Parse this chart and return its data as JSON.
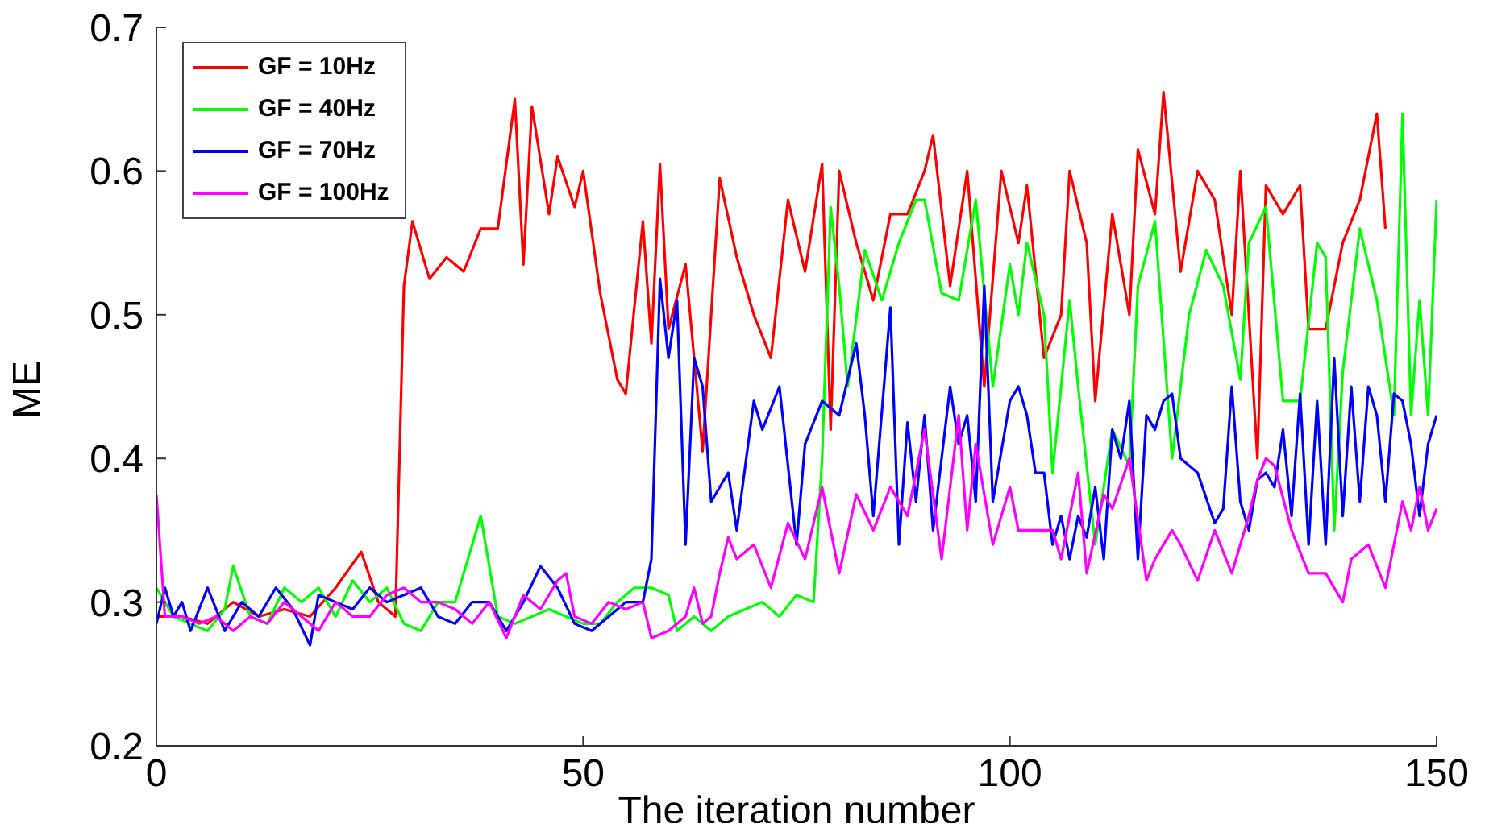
{
  "chart_data": {
    "type": "line",
    "xlabel": "The iteration number",
    "ylabel": "ME",
    "xlim": [
      0,
      150
    ],
    "xticks": [
      0,
      50,
      100,
      150
    ],
    "ylim": [
      0.2,
      0.7
    ],
    "yticks": [
      0.2,
      0.3,
      0.4,
      0.5,
      0.6,
      0.7
    ],
    "grid": false,
    "legend": "top left",
    "marker": "none",
    "line_style": "solid",
    "series": [
      {
        "name": "GF = 10Hz",
        "color": "#ff0000",
        "x": [
          0,
          3,
          6,
          9,
          12,
          15,
          18,
          21,
          24,
          26,
          28,
          29,
          30,
          32,
          34,
          36,
          38,
          40,
          42,
          43,
          44,
          46,
          47,
          49,
          50,
          52,
          54,
          55,
          57,
          58,
          59,
          60,
          62,
          64,
          66,
          68,
          70,
          72,
          74,
          76,
          78,
          79,
          80,
          82,
          84,
          86,
          88,
          90,
          91,
          93,
          95,
          97,
          99,
          101,
          102,
          104,
          106,
          107,
          109,
          110,
          112,
          114,
          115,
          117,
          118,
          120,
          122,
          124,
          126,
          127,
          129,
          130,
          132,
          134,
          135,
          137,
          139,
          141,
          143,
          144
        ],
        "values": [
          0.29,
          0.29,
          0.285,
          0.3,
          0.29,
          0.295,
          0.29,
          0.31,
          0.335,
          0.3,
          0.29,
          0.52,
          0.565,
          0.525,
          0.54,
          0.53,
          0.56,
          0.56,
          0.65,
          0.535,
          0.645,
          0.57,
          0.61,
          0.575,
          0.6,
          0.515,
          0.455,
          0.445,
          0.565,
          0.48,
          0.605,
          0.49,
          0.535,
          0.405,
          0.595,
          0.54,
          0.5,
          0.47,
          0.58,
          0.53,
          0.605,
          0.42,
          0.6,
          0.55,
          0.51,
          0.57,
          0.57,
          0.6,
          0.625,
          0.52,
          0.6,
          0.45,
          0.6,
          0.55,
          0.59,
          0.47,
          0.5,
          0.6,
          0.55,
          0.44,
          0.57,
          0.5,
          0.615,
          0.57,
          0.655,
          0.53,
          0.6,
          0.58,
          0.5,
          0.6,
          0.4,
          0.59,
          0.57,
          0.59,
          0.49,
          0.49,
          0.55,
          0.58,
          0.64,
          0.56
        ]
      },
      {
        "name": "GF = 40Hz",
        "color": "#00ff00",
        "x": [
          0,
          2,
          4,
          6,
          8,
          9,
          11,
          13,
          15,
          17,
          19,
          21,
          23,
          25,
          27,
          29,
          31,
          33,
          35,
          37,
          38,
          40,
          42,
          44,
          46,
          48,
          50,
          52,
          54,
          56,
          58,
          60,
          61,
          63,
          65,
          67,
          69,
          71,
          73,
          75,
          77,
          78,
          79,
          80,
          81,
          83,
          85,
          87,
          89,
          90,
          92,
          94,
          96,
          98,
          100,
          101,
          102,
          104,
          105,
          107,
          108,
          110,
          112,
          114,
          115,
          117,
          119,
          121,
          123,
          125,
          127,
          128,
          130,
          132,
          134,
          136,
          137,
          138,
          139,
          141,
          143,
          145,
          146,
          147,
          148,
          149,
          150
        ],
        "values": [
          0.31,
          0.29,
          0.285,
          0.28,
          0.295,
          0.325,
          0.29,
          0.285,
          0.31,
          0.3,
          0.31,
          0.29,
          0.315,
          0.3,
          0.31,
          0.285,
          0.28,
          0.3,
          0.3,
          0.34,
          0.36,
          0.29,
          0.285,
          0.29,
          0.295,
          0.29,
          0.285,
          0.285,
          0.3,
          0.31,
          0.31,
          0.305,
          0.28,
          0.29,
          0.28,
          0.29,
          0.295,
          0.3,
          0.29,
          0.305,
          0.3,
          0.4,
          0.575,
          0.52,
          0.45,
          0.545,
          0.51,
          0.55,
          0.58,
          0.58,
          0.515,
          0.51,
          0.58,
          0.45,
          0.535,
          0.5,
          0.55,
          0.5,
          0.39,
          0.51,
          0.45,
          0.34,
          0.42,
          0.395,
          0.52,
          0.565,
          0.4,
          0.5,
          0.545,
          0.52,
          0.455,
          0.55,
          0.575,
          0.44,
          0.44,
          0.55,
          0.54,
          0.35,
          0.46,
          0.56,
          0.51,
          0.43,
          0.64,
          0.43,
          0.51,
          0.43,
          0.58
        ]
      },
      {
        "name": "GF = 70Hz",
        "color": "#0000ff",
        "x": [
          0,
          1,
          2,
          3,
          4,
          6,
          8,
          10,
          12,
          14,
          16,
          18,
          19,
          21,
          23,
          25,
          27,
          29,
          31,
          33,
          35,
          37,
          39,
          41,
          43,
          45,
          47,
          49,
          51,
          53,
          55,
          57,
          58,
          59,
          60,
          61,
          62,
          63,
          64,
          65,
          67,
          68,
          70,
          71,
          73,
          75,
          76,
          78,
          80,
          82,
          83,
          84,
          86,
          87,
          88,
          89,
          90,
          91,
          93,
          94,
          95,
          96,
          97,
          98,
          100,
          101,
          102,
          103,
          104,
          105,
          106,
          107,
          108,
          109,
          110,
          111,
          112,
          113,
          114,
          115,
          116,
          117,
          118,
          119,
          120,
          122,
          124,
          125,
          126,
          127,
          128,
          129,
          130,
          131,
          132,
          133,
          134,
          135,
          136,
          137,
          138,
          139,
          140,
          141,
          142,
          143,
          144,
          145,
          146,
          147,
          148,
          149,
          150
        ],
        "values": [
          0.285,
          0.31,
          0.29,
          0.3,
          0.28,
          0.31,
          0.28,
          0.3,
          0.29,
          0.31,
          0.295,
          0.27,
          0.305,
          0.3,
          0.295,
          0.31,
          0.3,
          0.305,
          0.31,
          0.29,
          0.285,
          0.3,
          0.3,
          0.28,
          0.3,
          0.325,
          0.31,
          0.285,
          0.28,
          0.29,
          0.3,
          0.3,
          0.33,
          0.525,
          0.47,
          0.51,
          0.34,
          0.47,
          0.45,
          0.37,
          0.39,
          0.35,
          0.44,
          0.42,
          0.45,
          0.34,
          0.41,
          0.44,
          0.43,
          0.48,
          0.43,
          0.36,
          0.505,
          0.34,
          0.425,
          0.37,
          0.43,
          0.35,
          0.45,
          0.41,
          0.43,
          0.37,
          0.52,
          0.37,
          0.44,
          0.45,
          0.43,
          0.39,
          0.39,
          0.34,
          0.36,
          0.33,
          0.36,
          0.345,
          0.38,
          0.33,
          0.42,
          0.4,
          0.44,
          0.33,
          0.43,
          0.42,
          0.44,
          0.445,
          0.4,
          0.39,
          0.355,
          0.365,
          0.45,
          0.37,
          0.35,
          0.385,
          0.39,
          0.38,
          0.42,
          0.36,
          0.445,
          0.34,
          0.44,
          0.34,
          0.47,
          0.36,
          0.45,
          0.37,
          0.45,
          0.43,
          0.37,
          0.445,
          0.44,
          0.41,
          0.36,
          0.41,
          0.43
        ]
      },
      {
        "name": "GF = 100Hz",
        "color": "#ff00ff",
        "x": [
          0,
          1,
          3,
          5,
          7,
          9,
          11,
          13,
          15,
          17,
          19,
          21,
          23,
          25,
          27,
          29,
          31,
          33,
          35,
          37,
          39,
          41,
          43,
          45,
          47,
          48,
          49,
          51,
          53,
          55,
          57,
          58,
          60,
          62,
          63,
          64,
          65,
          66,
          67,
          68,
          70,
          72,
          74,
          76,
          78,
          80,
          82,
          84,
          86,
          88,
          90,
          92,
          94,
          95,
          96,
          98,
          100,
          101,
          103,
          105,
          106,
          108,
          109,
          111,
          112,
          114,
          116,
          117,
          119,
          120,
          122,
          124,
          126,
          128,
          129,
          130,
          131,
          133,
          135,
          137,
          139,
          140,
          142,
          144,
          146,
          147,
          148,
          149,
          150
        ],
        "values": [
          0.375,
          0.29,
          0.29,
          0.285,
          0.29,
          0.28,
          0.29,
          0.285,
          0.3,
          0.29,
          0.28,
          0.3,
          0.29,
          0.29,
          0.305,
          0.31,
          0.3,
          0.3,
          0.295,
          0.285,
          0.3,
          0.275,
          0.305,
          0.295,
          0.315,
          0.32,
          0.29,
          0.285,
          0.3,
          0.295,
          0.3,
          0.275,
          0.28,
          0.29,
          0.31,
          0.285,
          0.29,
          0.32,
          0.345,
          0.33,
          0.34,
          0.31,
          0.355,
          0.33,
          0.38,
          0.32,
          0.375,
          0.35,
          0.38,
          0.36,
          0.42,
          0.33,
          0.43,
          0.35,
          0.41,
          0.34,
          0.38,
          0.35,
          0.35,
          0.35,
          0.33,
          0.39,
          0.32,
          0.375,
          0.365,
          0.4,
          0.315,
          0.33,
          0.35,
          0.34,
          0.315,
          0.35,
          0.32,
          0.36,
          0.385,
          0.4,
          0.395,
          0.35,
          0.32,
          0.32,
          0.3,
          0.33,
          0.34,
          0.31,
          0.37,
          0.35,
          0.38,
          0.35,
          0.365
        ]
      }
    ]
  }
}
